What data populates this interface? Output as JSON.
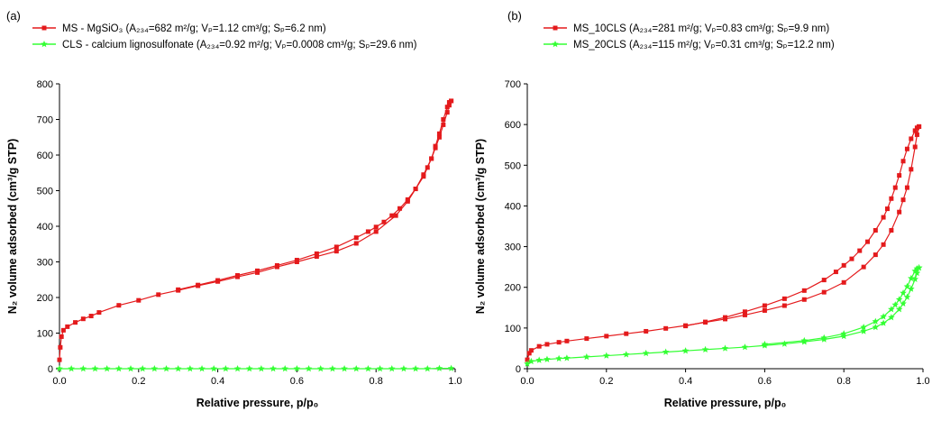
{
  "figure": {
    "background": "#ffffff"
  },
  "chart_data": [
    {
      "type": "line",
      "panel_label": "(a)",
      "xlabel": "Relative pressure, p/p₀",
      "ylabel": "N₂ volume adsorbed (cm³/g STP)",
      "xlim": [
        0.0,
        1.0
      ],
      "ylim": [
        0,
        800
      ],
      "xticks": [
        "0.0",
        "0.2",
        "0.4",
        "0.6",
        "0.8",
        "1.0"
      ],
      "yticks": [
        "0",
        "100",
        "200",
        "300",
        "400",
        "500",
        "600",
        "700",
        "800"
      ],
      "grid": false,
      "legend_position": "top-left",
      "series": [
        {
          "name": "MS - MgSiO₃ (A₂₃₄=682 m²/g; Vₚ=1.12 cm³/g; Sₚ=6.2 nm)",
          "color": "#e41a1c",
          "marker": "square",
          "adsorption": {
            "x": [
              0.0,
              0.002,
              0.005,
              0.01,
              0.02,
              0.04,
              0.06,
              0.08,
              0.1,
              0.15,
              0.2,
              0.25,
              0.3,
              0.35,
              0.4,
              0.45,
              0.5,
              0.55,
              0.6,
              0.65,
              0.7,
              0.75,
              0.8,
              0.85,
              0.88,
              0.9,
              0.92,
              0.94,
              0.95,
              0.96,
              0.97,
              0.98,
              0.985,
              0.99
            ],
            "y": [
              25,
              60,
              90,
              108,
              118,
              130,
              140,
              148,
              158,
              178,
              192,
              208,
              220,
              233,
              245,
              258,
              270,
              286,
              300,
              315,
              330,
              352,
              385,
              430,
              470,
              505,
              545,
              590,
              620,
              650,
              685,
              720,
              740,
              752
            ]
          },
          "desorption": {
            "x": [
              0.99,
              0.985,
              0.98,
              0.97,
              0.96,
              0.95,
              0.94,
              0.93,
              0.92,
              0.9,
              0.88,
              0.86,
              0.84,
              0.82,
              0.8,
              0.78,
              0.75,
              0.7,
              0.65,
              0.6,
              0.55,
              0.5,
              0.45,
              0.4,
              0.35,
              0.3
            ],
            "y": [
              752,
              748,
              735,
              700,
              660,
              625,
              590,
              565,
              540,
              505,
              475,
              450,
              430,
              412,
              398,
              385,
              368,
              342,
              323,
              305,
              290,
              275,
              262,
              248,
              235,
              222
            ]
          }
        },
        {
          "name": "CLS - calcium lignosulfonate (A₂₃₄=0.92 m²/g; Vₚ=0.0008 cm³/g; Sₚ=29.6 nm)",
          "color": "#33ff33",
          "marker": "star",
          "adsorption": {
            "x": [
              0.0,
              0.03,
              0.06,
              0.09,
              0.12,
              0.15,
              0.18,
              0.21,
              0.24,
              0.27,
              0.3,
              0.33,
              0.36,
              0.39,
              0.42,
              0.45,
              0.48,
              0.51,
              0.54,
              0.57,
              0.6,
              0.63,
              0.66,
              0.69,
              0.72,
              0.75,
              0.78,
              0.81,
              0.84,
              0.87,
              0.9,
              0.93,
              0.96,
              0.99
            ],
            "y": [
              0,
              0,
              0,
              0,
              0,
              0,
              0,
              0,
              0,
              0,
              0,
              0,
              0,
              0,
              0,
              0,
              0,
              0,
              0,
              0,
              0,
              0,
              0,
              0,
              0,
              0,
              0,
              0,
              0,
              0,
              0,
              0,
              1,
              1
            ]
          },
          "desorption": {
            "x": [],
            "y": []
          }
        }
      ]
    },
    {
      "type": "line",
      "panel_label": "(b)",
      "xlabel": "Relative pressure, p/p₀",
      "ylabel": "N₂ volume adsorbed (cm³/g STP)",
      "xlim": [
        0.0,
        1.0
      ],
      "ylim": [
        0,
        700
      ],
      "xticks": [
        "0.0",
        "0.2",
        "0.4",
        "0.6",
        "0.8",
        "1.0"
      ],
      "yticks": [
        "0",
        "100",
        "200",
        "300",
        "400",
        "500",
        "600",
        "700"
      ],
      "grid": false,
      "legend_position": "top-left",
      "series": [
        {
          "name": "MS_10CLS (A₂₃₄=281 m²/g; Vₚ=0.83 cm³/g; Sₚ=9.9 nm)",
          "color": "#e41a1c",
          "marker": "square",
          "adsorption": {
            "x": [
              0.0,
              0.005,
              0.01,
              0.03,
              0.05,
              0.08,
              0.1,
              0.15,
              0.2,
              0.25,
              0.3,
              0.35,
              0.4,
              0.45,
              0.5,
              0.55,
              0.6,
              0.65,
              0.7,
              0.75,
              0.8,
              0.85,
              0.88,
              0.9,
              0.92,
              0.94,
              0.95,
              0.96,
              0.97,
              0.98,
              0.985,
              0.99
            ],
            "y": [
              22,
              38,
              45,
              55,
              60,
              65,
              68,
              74,
              80,
              86,
              92,
              99,
              106,
              114,
              122,
              132,
              143,
              155,
              170,
              188,
              212,
              250,
              280,
              305,
              340,
              385,
              415,
              445,
              490,
              545,
              575,
              595
            ]
          },
          "desorption": {
            "x": [
              0.99,
              0.985,
              0.98,
              0.97,
              0.96,
              0.95,
              0.94,
              0.93,
              0.92,
              0.91,
              0.9,
              0.88,
              0.86,
              0.84,
              0.82,
              0.8,
              0.78,
              0.75,
              0.7,
              0.65,
              0.6,
              0.55,
              0.5,
              0.45,
              0.4
            ],
            "y": [
              595,
              592,
              585,
              565,
              540,
              510,
              475,
              445,
              418,
              393,
              372,
              340,
              312,
              290,
              270,
              254,
              238,
              218,
              192,
              172,
              155,
              140,
              126,
              115,
              105
            ]
          }
        },
        {
          "name": "MS_20CLS (A₂₃₄=115 m²/g; Vₚ=0.31 cm³/g; Sₚ=12.2 nm)",
          "color": "#33ff33",
          "marker": "star",
          "adsorption": {
            "x": [
              0.0,
              0.01,
              0.03,
              0.05,
              0.08,
              0.1,
              0.15,
              0.2,
              0.25,
              0.3,
              0.35,
              0.4,
              0.45,
              0.5,
              0.55,
              0.6,
              0.65,
              0.7,
              0.75,
              0.8,
              0.85,
              0.88,
              0.9,
              0.92,
              0.94,
              0.95,
              0.96,
              0.97,
              0.98,
              0.985,
              0.99
            ],
            "y": [
              12,
              18,
              21,
              23,
              25,
              26,
              29,
              32,
              35,
              38,
              41,
              44,
              47,
              50,
              53,
              57,
              61,
              66,
              72,
              80,
              92,
              102,
              112,
              126,
              146,
              160,
              176,
              196,
              220,
              235,
              248
            ]
          },
          "desorption": {
            "x": [
              0.99,
              0.985,
              0.98,
              0.97,
              0.96,
              0.95,
              0.94,
              0.93,
              0.92,
              0.9,
              0.88,
              0.85,
              0.8,
              0.75,
              0.7,
              0.6
            ],
            "y": [
              248,
              246,
              240,
              222,
              202,
              186,
              170,
              157,
              146,
              128,
              116,
              102,
              86,
              76,
              69,
              60
            ]
          }
        }
      ]
    }
  ]
}
